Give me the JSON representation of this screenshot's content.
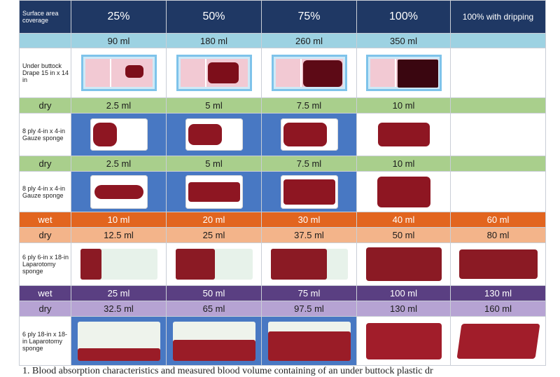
{
  "header": {
    "label": "Surface area coverage",
    "columns": [
      "25%",
      "50%",
      "75%",
      "100%",
      "100% with dripping"
    ]
  },
  "volume_row": [
    "90 ml",
    "180 ml",
    "260 ml",
    "350 ml",
    ""
  ],
  "rows": {
    "drape_label": "Under buttock Drape 15 in x 14 in",
    "drape_dry": {
      "label": "dry",
      "values": [
        "2.5 ml",
        "5 ml",
        "7.5 ml",
        "10 ml",
        ""
      ]
    },
    "gauze1_label": "8 ply 4-in x 4-in Gauze sponge",
    "gauze1_dry": {
      "label": "dry",
      "values": [
        "2.5 ml",
        "5 ml",
        "7.5 ml",
        "10 ml",
        ""
      ]
    },
    "gauze2_label": "8 ply 4-in x 4-in Gauze sponge",
    "gauze2_wet": {
      "label": "wet",
      "values": [
        "10 ml",
        "20 ml",
        "30 ml",
        "40 ml",
        "60 ml"
      ]
    },
    "gauze2_dry": {
      "label": "dry",
      "values": [
        "12.5 ml",
        "25 ml",
        "37.5 ml",
        "50 ml",
        "80 ml"
      ]
    },
    "lap1_label": "6 ply 6-in x 18-in Laparotomy sponge",
    "lap1_wet": {
      "label": "wet",
      "values": [
        "25 ml",
        "50 ml",
        "75 ml",
        "100 ml",
        "130 ml"
      ]
    },
    "lap1_dry": {
      "label": "dry",
      "values": [
        "32.5 ml",
        "65 ml",
        "97.5 ml",
        "130 ml",
        "160 ml"
      ]
    },
    "lap2_label": "6 ply 18-in x 18-in Laparotomy sponge"
  },
  "caption": "1.   Blood absorption characteristics and measured blood volume containing of an under buttock plastic dr",
  "colors": {
    "header": "#1f3864",
    "volume": "#9dd2e2",
    "green": "#a9cf8c",
    "orange": "#e2651f",
    "peach": "#f3b48a",
    "purple": "#5a3f82",
    "lavender": "#b6a3d3",
    "blue": "#4878c3",
    "blood": "#7d0e1a"
  }
}
